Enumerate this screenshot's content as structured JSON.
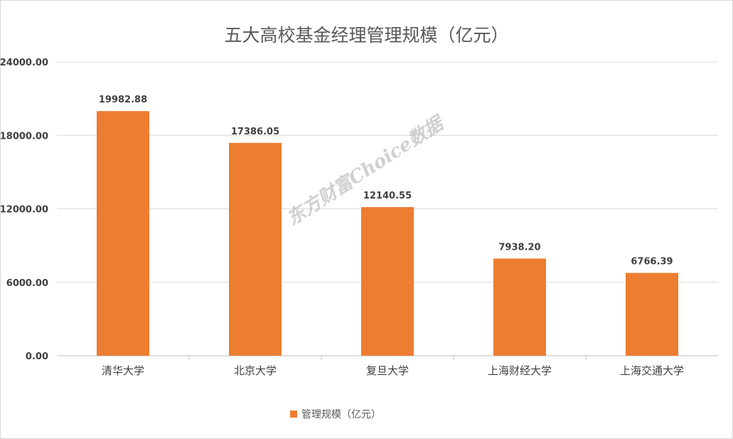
{
  "chart_data": {
    "type": "bar",
    "title": "五大高校基金经理管理规模（亿元）",
    "categories": [
      "清华大学",
      "北京大学",
      "复旦大学",
      "上海财经大学",
      "上海交通大学"
    ],
    "series": [
      {
        "name": "管理规模（亿元）",
        "values": [
          19982.88,
          17386.05,
          12140.55,
          7938.2,
          6766.39
        ],
        "data_labels": [
          "19982.88",
          "17386.05",
          "12140.55",
          "7938.20",
          "6766.39"
        ]
      }
    ],
    "ylim": [
      0,
      24000
    ],
    "yticks": [
      0,
      6000,
      12000,
      18000,
      24000
    ],
    "ytick_labels": [
      "0.00",
      "6000.00",
      "12000.00",
      "18000.00",
      "24000.00"
    ],
    "grid": true,
    "legend_position": "bottom",
    "bar_color": "#ed7d31"
  },
  "watermark": "东方财富Choice数据"
}
